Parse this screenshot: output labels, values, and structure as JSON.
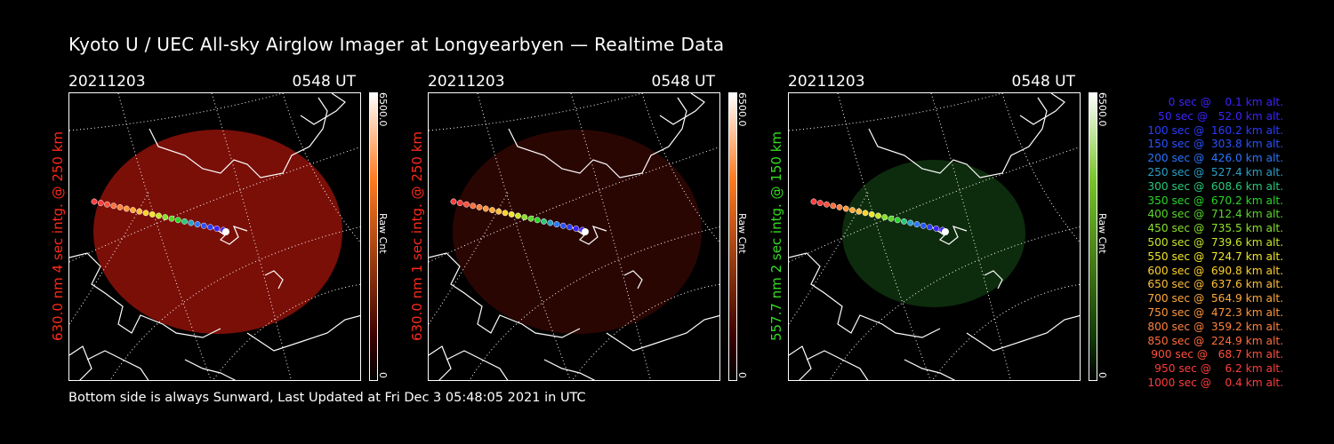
{
  "title": "Kyoto U / UEC All-sky Airglow Imager at Longyearbyen — Realtime Data",
  "footer": "Bottom side is always Sunward, Last Updated at Fri Dec  3 05:48:05 2021 in UTC",
  "panels": [
    {
      "date": "20211203",
      "time": "0548 UT",
      "ylabel": "630.0 nm 4 sec intg. @ 250 km",
      "label_color": "#ff2a1a",
      "image_color": "#7a0f08",
      "cbar_top_color": "#ff7a20",
      "cbar_max": "6500.0",
      "cbar_label": "Raw Cnt",
      "cbar_min": "0"
    },
    {
      "date": "20211203",
      "time": "0548 UT",
      "ylabel": "630.0 nm 1 sec intg. @ 250 km",
      "label_color": "#ff2a1a",
      "image_color": "#2a0603",
      "cbar_top_color": "#ff7a20",
      "cbar_max": "6500.0",
      "cbar_label": "Raw Cnt",
      "cbar_min": "0"
    },
    {
      "date": "20211203",
      "time": "0548 UT",
      "ylabel": "557.7 nm 2 sec intg. @ 150 km",
      "label_color": "#33dd22",
      "image_color": "#0d2c0d",
      "cbar_top_color": "#7ac52a",
      "cbar_max": "6500.0",
      "cbar_label": "Raw Cnt",
      "cbar_min": "0"
    }
  ],
  "legend": [
    {
      "text": "   0 sec @    0.1 km alt.",
      "color": "#3c23ff"
    },
    {
      "text": "  50 sec @   52.0 km alt.",
      "color": "#3c23ff"
    },
    {
      "text": " 100 sec @  160.2 km alt.",
      "color": "#2a3cff"
    },
    {
      "text": " 150 sec @  303.8 km alt.",
      "color": "#2a52ff"
    },
    {
      "text": " 200 sec @  426.0 km alt.",
      "color": "#2a76ff"
    },
    {
      "text": " 250 sec @  527.4 km alt.",
      "color": "#2aa0c8"
    },
    {
      "text": " 300 sec @  608.6 km alt.",
      "color": "#2ac87a"
    },
    {
      "text": " 350 sec @  670.2 km alt.",
      "color": "#2ad72a"
    },
    {
      "text": " 400 sec @  712.4 km alt.",
      "color": "#5ad72a"
    },
    {
      "text": " 450 sec @  735.5 km alt.",
      "color": "#8ae02a"
    },
    {
      "text": " 500 sec @  739.6 km alt.",
      "color": "#c8e62a"
    },
    {
      "text": " 550 sec @  724.7 km alt.",
      "color": "#f0e62a"
    },
    {
      "text": " 600 sec @  690.8 km alt.",
      "color": "#ffd22a"
    },
    {
      "text": " 650 sec @  637.6 km alt.",
      "color": "#ffbe3c"
    },
    {
      "text": " 700 sec @  564.9 km alt.",
      "color": "#ffaa3c"
    },
    {
      "text": " 750 sec @  472.3 km alt.",
      "color": "#ff963c"
    },
    {
      "text": " 800 sec @  359.2 km alt.",
      "color": "#ff823c"
    },
    {
      "text": " 850 sec @  224.9 km alt.",
      "color": "#ff6e3c"
    },
    {
      "text": " 900 sec @   68.7 km alt.",
      "color": "#ff503c"
    },
    {
      "text": " 950 sec @    6.2 km alt.",
      "color": "#ff3c3c"
    },
    {
      "text": "1000 sec @    0.4 km alt.",
      "color": "#ff3c3c"
    }
  ]
}
